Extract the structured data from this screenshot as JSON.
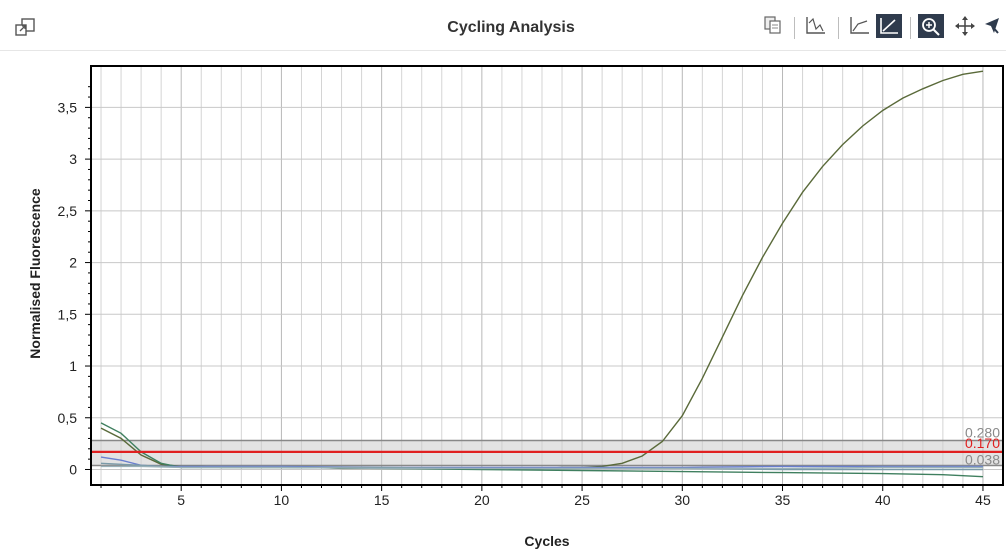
{
  "header": {
    "title": "Cycling Analysis",
    "icons": [
      "popout-icon",
      "copy-icon",
      "linear-scale-icon",
      "log-scale-icon",
      "auto-scale-icon",
      "zoom-icon",
      "pan-icon",
      "select-pointer-icon"
    ]
  },
  "chart_data": {
    "type": "line",
    "xlabel": "Cycles",
    "ylabel": "Normalised Fluorescence",
    "xlim": [
      0.5,
      46
    ],
    "ylim": [
      -0.15,
      3.9
    ],
    "x_ticks": [
      5,
      10,
      15,
      20,
      25,
      30,
      35,
      40,
      45
    ],
    "x_tick_labels": [
      "5",
      "10",
      "15",
      "20",
      "25",
      "30",
      "35",
      "40",
      "45"
    ],
    "y_ticks": [
      0,
      0.5,
      1,
      1.5,
      2,
      2.5,
      3,
      3.5
    ],
    "y_tick_labels": [
      "0",
      "0,5",
      "1",
      "1,5",
      "2",
      "2,5",
      "3",
      "3,5"
    ],
    "grid": true,
    "threshold_band": {
      "low": 0.038,
      "high": 0.28,
      "color": "#cccccc"
    },
    "threshold": {
      "value": 0.17,
      "color": "#e02020"
    },
    "threshold_labels": [
      "0.280",
      "0.170",
      "0.038"
    ],
    "series": [
      {
        "color": "#5a6a3a",
        "x": [
          1,
          2,
          3,
          4,
          5,
          6,
          7,
          8,
          9,
          10,
          11,
          12,
          13,
          14,
          15,
          16,
          17,
          18,
          19,
          20,
          21,
          22,
          23,
          24,
          25,
          26,
          27,
          28,
          29,
          30,
          31,
          32,
          33,
          34,
          35,
          36,
          37,
          38,
          39,
          40,
          41,
          42,
          43,
          44,
          45
        ],
        "y": [
          0.4,
          0.3,
          0.14,
          0.05,
          0.03,
          0.03,
          0.02,
          0.02,
          0.02,
          0.02,
          0.02,
          0.02,
          0.01,
          0.01,
          0.01,
          0.01,
          0.01,
          0.01,
          0.01,
          0.01,
          0.01,
          0.01,
          0.01,
          0.02,
          0.02,
          0.03,
          0.06,
          0.13,
          0.27,
          0.52,
          0.88,
          1.28,
          1.68,
          2.05,
          2.38,
          2.68,
          2.93,
          3.14,
          3.32,
          3.47,
          3.59,
          3.68,
          3.76,
          3.82,
          3.85
        ]
      },
      {
        "color": "#3f7f5f",
        "x": [
          1,
          2,
          3,
          4,
          5,
          10,
          15,
          20,
          25,
          30,
          35,
          40,
          43,
          45
        ],
        "y": [
          0.45,
          0.35,
          0.17,
          0.06,
          0.02,
          0.02,
          0.01,
          0.0,
          -0.01,
          -0.02,
          -0.03,
          -0.04,
          -0.05,
          -0.07
        ]
      },
      {
        "color": "#6a7fd0",
        "x": [
          1,
          2,
          3,
          4,
          5,
          10,
          15,
          20,
          25,
          30,
          35,
          40,
          45
        ],
        "y": [
          0.12,
          0.09,
          0.04,
          0.03,
          0.03,
          0.03,
          0.02,
          0.02,
          0.02,
          0.02,
          0.03,
          0.03,
          0.03
        ]
      },
      {
        "color": "#7a9aa8",
        "x": [
          1,
          2,
          3,
          4,
          5,
          10,
          15,
          20,
          25,
          30,
          35,
          40,
          45
        ],
        "y": [
          0.06,
          0.05,
          0.04,
          0.03,
          0.02,
          0.02,
          0.02,
          0.01,
          0.01,
          0.01,
          0.0,
          0.0,
          0.0
        ]
      },
      {
        "color": "#98b0b8",
        "x": [
          1,
          3,
          5,
          10,
          15,
          20,
          25,
          30,
          35,
          40,
          45
        ],
        "y": [
          0.03,
          0.03,
          0.02,
          0.02,
          0.01,
          0.01,
          0.01,
          0.01,
          0.01,
          0.02,
          0.02
        ]
      }
    ]
  }
}
